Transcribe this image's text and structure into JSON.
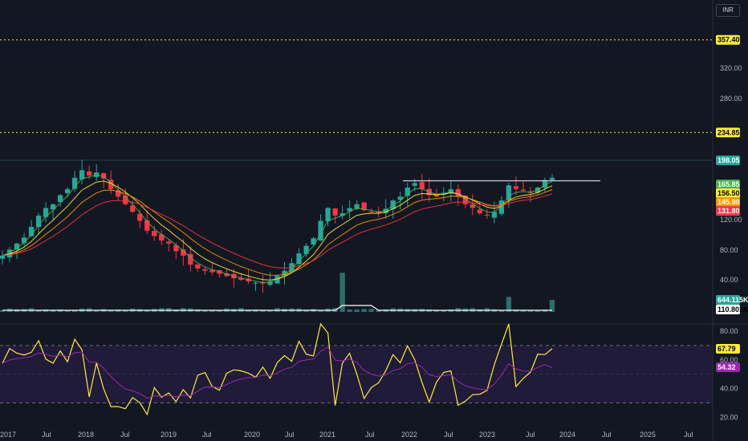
{
  "currency_label": "INR",
  "chart_data": {
    "type": "candlestick",
    "x_labels": [
      "2017",
      "Jul",
      "2018",
      "Jul",
      "2019",
      "Jul",
      "2020",
      "Jul",
      "2021",
      "Jul",
      "2022",
      "Jul",
      "2023",
      "Jul",
      "2024",
      "Jul",
      "2025",
      "Jul"
    ],
    "price_axis": {
      "ticks": [
        "320.00",
        "280.00",
        "120.00",
        "80.00",
        "40.00"
      ],
      "range": [
        0,
        380
      ]
    },
    "rsi_axis": {
      "ticks": [
        "80.00",
        "60.00",
        "40.00",
        "20.00"
      ],
      "range": [
        15,
        90
      ],
      "band": [
        30,
        70
      ]
    },
    "levels": [
      {
        "label": "357.40",
        "value": 357.4,
        "style": "dotted",
        "color": "#ffeb3b"
      },
      {
        "label": "234.85",
        "value": 234.85,
        "style": "dotted",
        "color": "#ffeb3b"
      }
    ],
    "current_price": {
      "label": "198.05",
      "value": 198.05,
      "color": "#26a69a"
    },
    "moving_averages": [
      {
        "label": "165.85",
        "value": 165.85,
        "color": "#4caf50"
      },
      {
        "label": "156.50",
        "value": 156.5,
        "color": "#ffeb3b"
      },
      {
        "label": "145.90",
        "value": 145.9,
        "color": "#ff9800"
      },
      {
        "label": "131.80",
        "value": 131.8,
        "color": "#f23645"
      }
    ],
    "resistance_line": {
      "value": 171,
      "color": "#d1d4dc"
    },
    "volume": {
      "labels": [
        "644.115K",
        "110.801K"
      ],
      "colors": [
        "#26a69a",
        "#ffffff"
      ]
    },
    "rsi": {
      "labels": [
        "67.79",
        "54.32"
      ],
      "colors": [
        "#ffeb3b",
        "#9c27b0"
      ]
    },
    "closes": [
      72,
      80,
      88,
      96,
      110,
      125,
      135,
      140,
      152,
      160,
      175,
      185,
      178,
      182,
      174,
      160,
      150,
      140,
      130,
      118,
      105,
      98,
      92,
      88,
      78,
      72,
      60,
      55,
      52,
      50,
      48,
      45,
      42,
      40,
      38,
      36,
      35,
      38,
      45,
      52,
      62,
      75,
      85,
      95,
      118,
      135,
      125,
      128,
      135,
      140,
      132,
      130,
      128,
      134,
      145,
      150,
      162,
      168,
      160,
      152,
      150,
      155,
      160,
      150,
      140,
      135,
      128,
      125,
      130,
      145,
      165,
      160,
      158,
      155,
      162,
      172,
      175
    ]
  }
}
